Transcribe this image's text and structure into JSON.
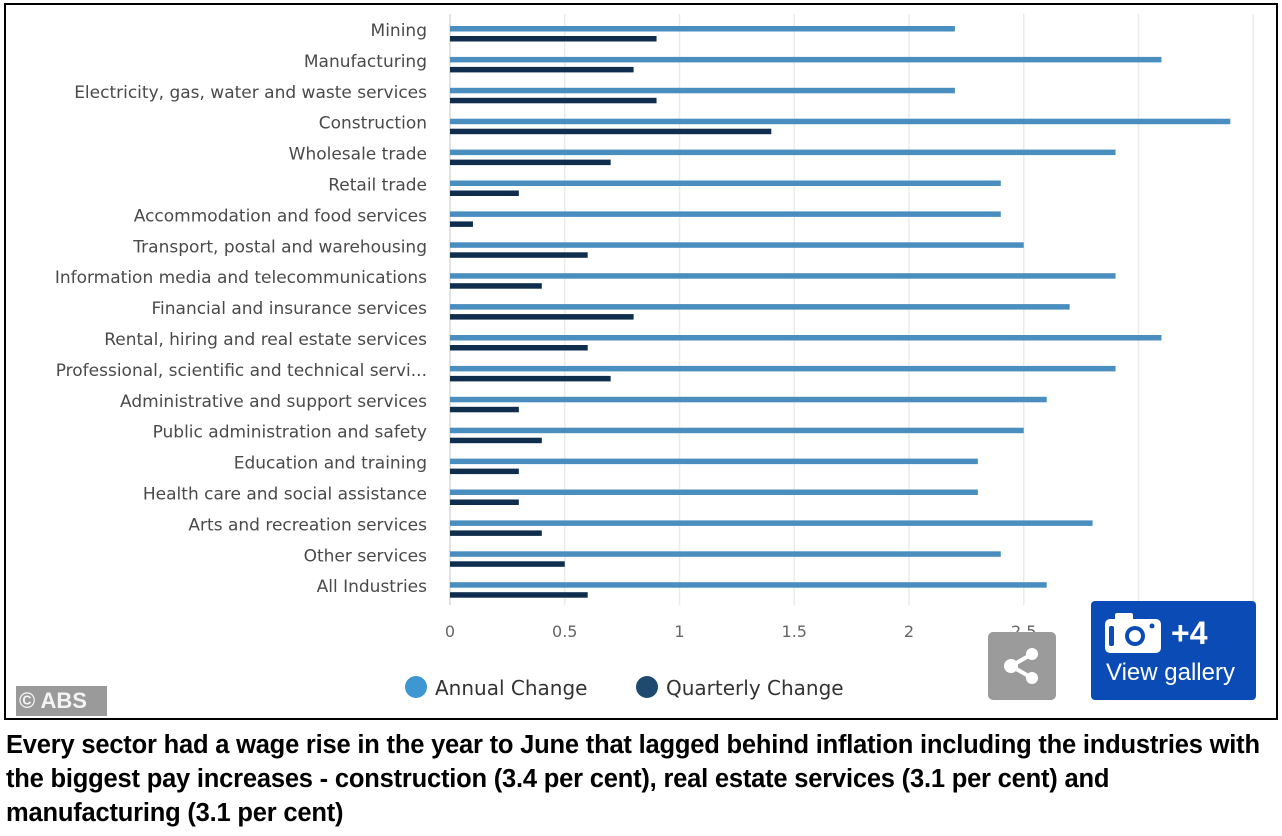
{
  "chart_data": {
    "type": "bar",
    "orientation": "horizontal",
    "title": "",
    "xlabel": "",
    "ylabel": "",
    "categories": [
      "Mining",
      "Manufacturing",
      "Electricity, gas, water and waste services",
      "Construction",
      "Wholesale trade",
      "Retail trade",
      "Accommodation and food services",
      "Transport, postal and warehousing",
      "Information media and telecommunications",
      "Financial and insurance services",
      "Rental, hiring and real estate services",
      "Professional, scientific and technical servi...",
      "Administrative and support services",
      "Public administration and safety",
      "Education and training",
      "Health care and social assistance",
      "Arts and recreation services",
      "Other services",
      "All Industries"
    ],
    "series": [
      {
        "name": "Annual Change",
        "color": "#4a8ec0",
        "legend_color": "#3e97d1",
        "values": [
          2.2,
          3.1,
          2.2,
          3.4,
          2.9,
          2.4,
          2.4,
          2.5,
          2.9,
          2.7,
          3.1,
          2.9,
          2.6,
          2.5,
          2.3,
          2.3,
          2.8,
          2.4,
          2.6
        ]
      },
      {
        "name": "Quarterly Change",
        "color": "#0f2e4e",
        "legend_color": "#1d4a6e",
        "values": [
          0.9,
          0.8,
          0.9,
          1.4,
          0.7,
          0.3,
          0.1,
          0.6,
          0.4,
          0.8,
          0.6,
          0.7,
          0.3,
          0.4,
          0.3,
          0.3,
          0.4,
          0.5,
          0.6
        ]
      }
    ],
    "xticks": [
      "0",
      "0.5",
      "1",
      "1.5",
      "2",
      "2.5"
    ],
    "xlim": [
      0,
      3.5
    ],
    "grid": true,
    "legend_position": "bottom"
  },
  "credit": "© ABS",
  "share": {
    "icon": "share-icon"
  },
  "gallery": {
    "icon": "camera-icon",
    "count": "+4",
    "label": "View gallery"
  },
  "caption": "Every sector had a wage rise in the year to June that lagged behind inflation including the industries with the biggest pay increases - construction (3.4 per cent), real estate services (3.1 per cent) and manufacturing (3.1 per cent)"
}
